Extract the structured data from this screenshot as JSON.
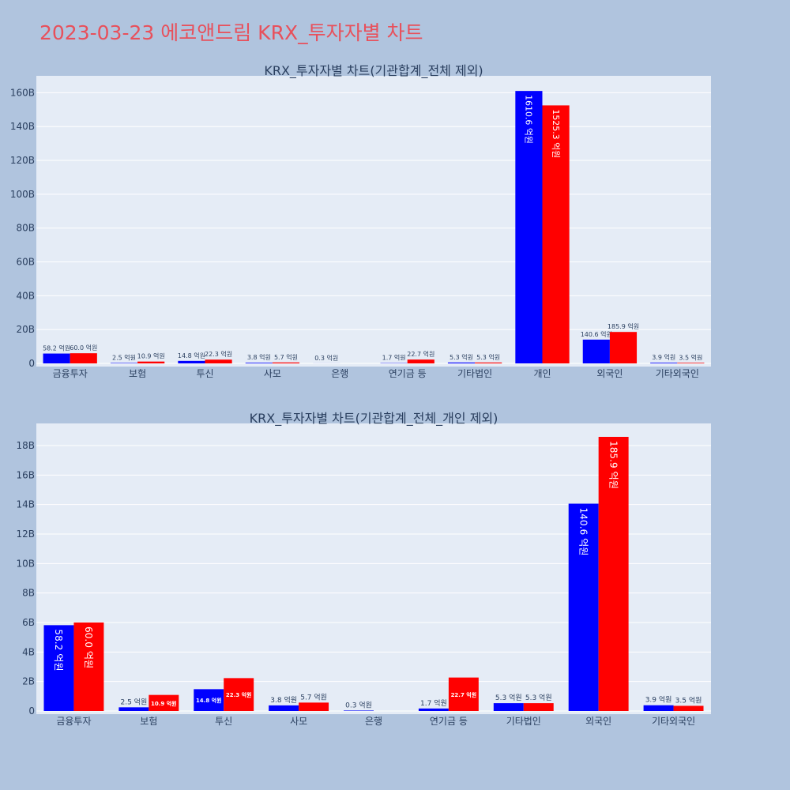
{
  "title": "2023-03-23 에코앤드림 KRX_투자자별 차트",
  "colors": {
    "buy": "#0000ff",
    "sell": "#ff0000",
    "title": "#e8505b",
    "background": "#b0c4de",
    "plot_bg": "#e5ecf6"
  },
  "chart_data": [
    {
      "type": "bar",
      "title": "KRX_투자자별 차트(기관합계_전체 제외)",
      "categories": [
        "금융투자",
        "보험",
        "투신",
        "사모",
        "은행",
        "연기금 등",
        "기타법인",
        "개인",
        "외국인",
        "기타외국인"
      ],
      "series": [
        {
          "values": [
            5.82,
            0.25,
            1.48,
            0.38,
            0.03,
            0.17,
            0.53,
            161.06,
            14.06,
            0.39
          ],
          "labels": [
            "58.2 억원",
            "2.5 억원",
            "14.8 억원",
            "3.8 억원",
            "0.3 억원",
            "1.7 억원",
            "5.3 억원",
            "1610.6 억원",
            "140.6 억원",
            "3.9 억원"
          ]
        },
        {
          "values": [
            6.0,
            1.09,
            2.23,
            0.57,
            0,
            2.27,
            0.53,
            152.53,
            18.59,
            0.35
          ],
          "labels": [
            "60.0 억원",
            "10.9 억원",
            "22.3 억원",
            "5.7 억원",
            "",
            "22.7 억원",
            "5.3 억원",
            "1525.3 억원",
            "185.9 억원",
            "3.5 억원"
          ]
        }
      ],
      "y_ticks": [
        "0",
        "20B",
        "40B",
        "60B",
        "80B",
        "100B",
        "120B",
        "140B",
        "160B"
      ],
      "ylim": [
        0,
        170
      ],
      "tick_step": 20,
      "grid": true
    },
    {
      "type": "bar",
      "title": "KRX_투자자별 차트(기관합계_전체_개인 제외)",
      "categories": [
        "금융투자",
        "보험",
        "투신",
        "사모",
        "은행",
        "연기금 등",
        "기타법인",
        "외국인",
        "기타외국인"
      ],
      "series": [
        {
          "values": [
            5.82,
            0.25,
            1.48,
            0.38,
            0.03,
            0.17,
            0.53,
            14.06,
            0.39
          ],
          "labels": [
            "58.2 억원",
            "2.5 억원",
            "14.8 억원",
            "3.8 억원",
            "0.3 억원",
            "1.7 억원",
            "5.3 억원",
            "140.6 억원",
            "3.9 억원"
          ]
        },
        {
          "values": [
            6.0,
            1.09,
            2.23,
            0.57,
            0,
            2.27,
            0.53,
            18.59,
            0.35
          ],
          "labels": [
            "60.0 억원",
            "10.9 억원",
            "22.3 억원",
            "5.7 억원",
            "",
            "22.7 억원",
            "5.3 억원",
            "185.9 억원",
            "3.5 억원"
          ]
        }
      ],
      "y_ticks": [
        "0",
        "2B",
        "4B",
        "6B",
        "8B",
        "10B",
        "12B",
        "14B",
        "16B",
        "18B"
      ],
      "ylim": [
        0,
        19.5
      ],
      "tick_step": 2,
      "grid": true
    }
  ]
}
